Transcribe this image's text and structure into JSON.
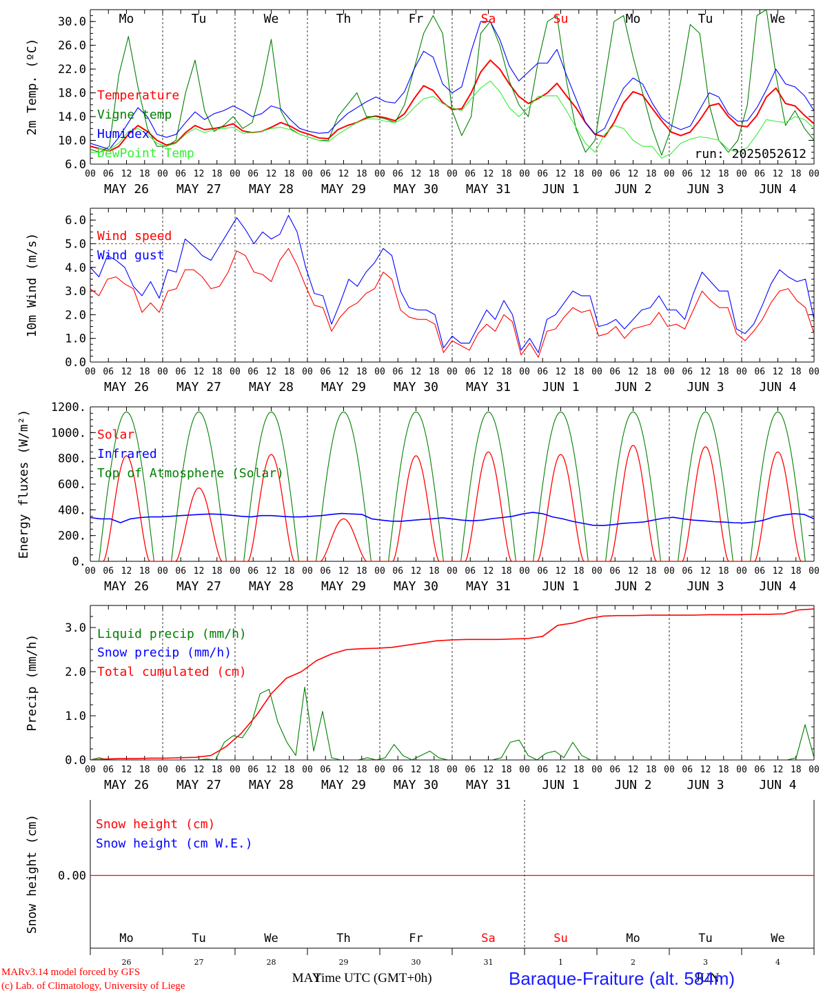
{
  "credits": [
    "MARv3.14 model forced by GFS",
    "(c) Lab. of Climatology, University of Liege"
  ],
  "station": "Baraque-Fraiture (alt. 584m)",
  "bottom_axis_title": "Time UTC (GMT+0h)",
  "colors": {
    "red": "#ff0000",
    "green": "#007f00",
    "blue": "#0000ff",
    "lightgreen": "#33ee33",
    "saturday": "#ff0000",
    "sunday": "#ff0000"
  },
  "day_names": [
    "Mo",
    "Tu",
    "We",
    "Th",
    "Fr",
    "Sa",
    "Su",
    "Mo",
    "Tu",
    "We"
  ],
  "day_name_colors": [
    "#000",
    "#000",
    "#000",
    "#000",
    "#000",
    "#ff0000",
    "#ff0000",
    "#000",
    "#000",
    "#000"
  ],
  "date_labels": [
    "MAY 26",
    "MAY 27",
    "MAY 28",
    "MAY 29",
    "MAY 30",
    "MAY 31",
    "JUN  1",
    "JUN  2",
    "JUN  3",
    "JUN  4"
  ],
  "hour_ticks": [
    "00",
    "06",
    "12",
    "18"
  ],
  "snow_panel_days": [
    "26",
    "27",
    "28",
    "29",
    "30",
    "31",
    "1",
    "2",
    "3",
    "4"
  ],
  "snow_panel_months": [
    "MAY",
    "JUN"
  ],
  "chart_data": [
    {
      "type": "line",
      "ylabel": "2m Temp. (ºC)",
      "ylim": [
        6,
        32
      ],
      "yticks": [
        "6.0",
        "10.0",
        "14.0",
        "18.0",
        "22.0",
        "26.0",
        "30.0"
      ],
      "annotation": "run: 2025052612",
      "x_unit": "hours since 2025-05-26 00 UTC (3-hourly)",
      "series": [
        {
          "name": "Temperature",
          "color": "#ff0000",
          "values": [
            9,
            8.6,
            8.2,
            9,
            11,
            12.5,
            11.5,
            10,
            9.2,
            9.6,
            11.3,
            12.5,
            11.8,
            12,
            12.3,
            12.8,
            11.6,
            11.3,
            11.5,
            12.2,
            13,
            12.4,
            11.5,
            11,
            10.4,
            10.3,
            11.8,
            12.5,
            13,
            13.8,
            14.1,
            13.8,
            13.3,
            14.5,
            17,
            19.2,
            18.4,
            16.4,
            15.2,
            15.3,
            18,
            21.5,
            23.5,
            22,
            19.5,
            17.4,
            16.2,
            17,
            18,
            19.6,
            17.5,
            15.5,
            13,
            11,
            10.6,
            13,
            16.3,
            18.2,
            17.6,
            15.4,
            13.3,
            11.4,
            10.8,
            11.4,
            13.4,
            15.8,
            16.2,
            14,
            12.5,
            12.3,
            14.2,
            17.3,
            18.8,
            16.2,
            15.8,
            14.2,
            12.8
          ]
        },
        {
          "name": "Vigne temp",
          "color": "#007f00",
          "values": [
            8.5,
            8,
            9,
            21,
            27.5,
            19,
            12,
            9,
            9,
            10,
            18,
            23.5,
            15,
            11.5,
            12.5,
            14,
            12,
            13,
            19,
            27,
            15,
            12,
            11,
            10.5,
            10,
            10,
            14,
            16,
            18,
            14,
            14,
            13.6,
            13,
            16,
            22,
            28,
            31,
            28,
            15,
            10.8,
            14,
            28,
            30,
            26,
            20,
            16,
            14,
            23,
            30,
            31,
            20,
            12,
            8,
            10,
            20,
            30,
            31,
            24,
            18,
            12,
            7.5,
            12,
            20,
            29.5,
            28,
            16,
            10,
            8,
            10,
            16,
            31,
            32,
            21,
            12.5,
            15,
            12,
            10
          ]
        },
        {
          "name": "Humidex",
          "color": "#0000ff",
          "values": [
            9.5,
            9,
            8.5,
            10.5,
            13,
            15.5,
            14,
            11,
            10.5,
            11,
            13,
            14.8,
            13.5,
            14.5,
            15,
            15.8,
            15,
            14,
            14.5,
            15.8,
            15.3,
            13.5,
            12,
            11.5,
            11.2,
            11.3,
            13,
            14.5,
            15.5,
            16.5,
            17.3,
            16.5,
            16.3,
            18.2,
            22,
            25,
            24,
            19.5,
            18,
            19,
            25,
            30,
            30,
            27,
            22.5,
            20,
            21.5,
            23,
            23,
            25.3,
            21,
            17,
            13,
            11,
            12,
            15.5,
            18.8,
            20.5,
            19.5,
            16.3,
            13.8,
            12.5,
            11.8,
            12.4,
            15.2,
            18,
            17.3,
            14.5,
            13.2,
            13.3,
            15.5,
            18.5,
            22,
            19.5,
            19,
            17.5,
            15
          ]
        },
        {
          "name": "DewPoint Temp",
          "color": "#33ee33",
          "values": [
            8,
            8,
            8.5,
            9.5,
            11.5,
            12,
            11,
            9.5,
            9,
            9.5,
            11,
            12,
            11.3,
            11.8,
            12,
            12.2,
            11.2,
            11.3,
            11.5,
            12,
            12.2,
            11.8,
            11,
            10.5,
            10,
            9.8,
            11,
            12,
            13,
            13.6,
            13.6,
            13.2,
            13,
            13.8,
            15.5,
            17,
            17.4,
            16.2,
            15.5,
            15,
            17,
            18.8,
            20,
            18.2,
            15.5,
            14,
            15.5,
            17.4,
            17.5,
            17.5,
            15,
            12.2,
            9.5,
            8,
            11,
            12.5,
            12,
            10,
            9,
            9,
            7,
            7.8,
            9.5,
            10.2,
            10.6,
            10.4,
            10,
            8.5,
            8,
            8.8,
            11,
            13.5,
            13.2,
            13,
            14,
            13.5,
            12
          ]
        }
      ]
    },
    {
      "type": "line",
      "ylabel": "10m Wind (m/s)",
      "ylim": [
        0,
        6.5
      ],
      "yticks": [
        "0.0",
        "1.0",
        "2.0",
        "3.0",
        "4.0",
        "5.0",
        "6.0"
      ],
      "reference_line": 5,
      "series": [
        {
          "name": "Wind speed",
          "color": "#ff0000",
          "values": [
            3.1,
            2.8,
            3.5,
            3.6,
            3.3,
            3.1,
            2.1,
            2.5,
            2.1,
            3,
            3.1,
            3.9,
            3.9,
            3.6,
            3.1,
            3.2,
            3.8,
            4.7,
            4.5,
            3.8,
            3.7,
            3.4,
            4.3,
            4.8,
            4.1,
            3.2,
            2.4,
            2.3,
            1.3,
            1.9,
            2.3,
            2.5,
            2.9,
            3.1,
            3.8,
            3.5,
            2.2,
            1.9,
            1.8,
            1.8,
            1.6,
            0.4,
            0.9,
            0.7,
            0.5,
            1.2,
            1.6,
            1.3,
            2,
            1.7,
            0.3,
            0.8,
            0.2,
            1.3,
            1.4,
            1.9,
            2.3,
            2.1,
            2.2,
            1.1,
            1.2,
            1.5,
            1,
            1.4,
            1.5,
            1.6,
            2.1,
            1.5,
            1.6,
            1.4,
            2.2,
            3,
            2.6,
            2.3,
            2.3,
            1.2,
            0.9,
            1.3,
            1.8,
            2.5,
            3,
            3.1,
            2.6,
            2.3,
            1.2
          ]
        },
        {
          "name": "Wind gust",
          "color": "#0000ff",
          "values": [
            4,
            3.6,
            4.5,
            4.3,
            4,
            3.2,
            2.8,
            3.4,
            2.7,
            3.9,
            3.8,
            5.2,
            4.9,
            4.5,
            4.3,
            4.9,
            5.5,
            6.1,
            5.6,
            5,
            5.5,
            5.2,
            5.4,
            6.2,
            5.5,
            4,
            2.9,
            2.8,
            1.6,
            2.5,
            3.5,
            3.2,
            3.8,
            4.2,
            4.8,
            4.5,
            3,
            2.3,
            2.2,
            2.2,
            2,
            0.6,
            1.1,
            0.8,
            0.8,
            1.5,
            2.2,
            1.8,
            2.6,
            2,
            0.5,
            1,
            0.4,
            1.8,
            2,
            2.5,
            3,
            2.8,
            2.8,
            1.5,
            1.6,
            1.8,
            1.4,
            1.8,
            2.2,
            2.3,
            2.8,
            2.2,
            2.2,
            1.8,
            2.9,
            3.8,
            3.4,
            3,
            3,
            1.4,
            1.2,
            1.6,
            2.4,
            3.3,
            3.9,
            3.6,
            3.4,
            3.5,
            1.8
          ]
        }
      ]
    },
    {
      "type": "line",
      "ylabel": "Energy fluxes (W/m²)",
      "ylim": [
        0,
        1200
      ],
      "yticks": [
        "0.",
        "200.",
        "400.",
        "600.",
        "800.",
        "1000.",
        "1200."
      ],
      "series": [
        {
          "name": "Solar",
          "color": "#ff0000",
          "peaks": [
            820,
            570,
            830,
            330,
            820,
            850,
            830,
            900,
            890,
            850
          ]
        },
        {
          "name": "Infrared",
          "color": "#0000ff",
          "values": [
            340,
            330,
            330,
            300,
            330,
            340,
            345,
            345,
            350,
            355,
            360,
            365,
            368,
            365,
            358,
            350,
            345,
            355,
            355,
            350,
            345,
            345,
            350,
            355,
            365,
            372,
            368,
            365,
            330,
            320,
            312,
            312,
            318,
            325,
            330,
            338,
            330,
            320,
            315,
            320,
            332,
            340,
            350,
            368,
            380,
            370,
            345,
            330,
            310,
            295,
            280,
            278,
            285,
            295,
            300,
            305,
            320,
            335,
            342,
            330,
            320,
            315,
            308,
            305,
            300,
            298,
            305,
            320,
            345,
            360,
            370,
            365,
            330
          ]
        },
        {
          "name": "Top of Atmosphere (Solar)",
          "color": "#007f00",
          "peak": 1160
        }
      ]
    },
    {
      "type": "line",
      "ylabel": "Precip (mm/h)",
      "ylim": [
        0,
        3.5
      ],
      "yticks": [
        "0.0",
        "1.0",
        "2.0",
        "3.0"
      ],
      "series": [
        {
          "name": "Liquid precip (mm/h)",
          "color": "#007f00",
          "values": [
            0,
            0.05,
            0,
            0,
            0,
            0,
            0,
            0,
            0,
            0,
            0,
            0,
            0,
            0.02,
            0,
            0.4,
            0.55,
            0.5,
            0.8,
            1.5,
            1.6,
            0.85,
            0.4,
            0.1,
            1.65,
            0.2,
            1.1,
            0.05,
            0,
            0,
            0,
            0.05,
            0,
            0.05,
            0.35,
            0.1,
            0,
            0.1,
            0.2,
            0.05,
            0,
            0,
            0,
            0,
            0,
            0,
            0.05,
            0.4,
            0.45,
            0.1,
            0,
            0.15,
            0.2,
            0.05,
            0.4,
            0.1,
            0,
            0,
            0,
            0,
            0,
            0,
            0,
            0,
            0,
            0,
            0,
            0,
            0,
            0,
            0,
            0,
            0,
            0,
            0,
            0,
            0,
            0,
            0,
            0.05,
            0.8,
            0.05
          ]
        },
        {
          "name": "Snow precip (mm/h)",
          "color": "#0000ff",
          "values": [
            0,
            0
          ]
        },
        {
          "name": "Total cumulated (cm)",
          "color": "#ff0000",
          "values": [
            0,
            0.02,
            0.03,
            0.03,
            0.04,
            0.04,
            0.05,
            0.06,
            0.1,
            0.3,
            0.6,
            1,
            1.5,
            1.85,
            2,
            2.25,
            2.4,
            2.5,
            2.52,
            2.53,
            2.55,
            2.6,
            2.65,
            2.7,
            2.72,
            2.73,
            2.73,
            2.73,
            2.74,
            2.75,
            2.8,
            3.05,
            3.1,
            3.2,
            3.26,
            3.27,
            3.27,
            3.28,
            3.28,
            3.28,
            3.28,
            3.29,
            3.29,
            3.29,
            3.3,
            3.3,
            3.31,
            3.4,
            3.42
          ]
        }
      ]
    },
    {
      "type": "line",
      "ylabel": "Snow height (cm)",
      "yticks": [
        "0.00"
      ],
      "series": [
        {
          "name": "Snow height (cm)",
          "color": "#ff0000",
          "values": [
            0,
            0
          ]
        },
        {
          "name": "Snow height (cm W.E.)",
          "color": "#0000ff",
          "values": [
            0,
            0
          ]
        }
      ]
    }
  ]
}
